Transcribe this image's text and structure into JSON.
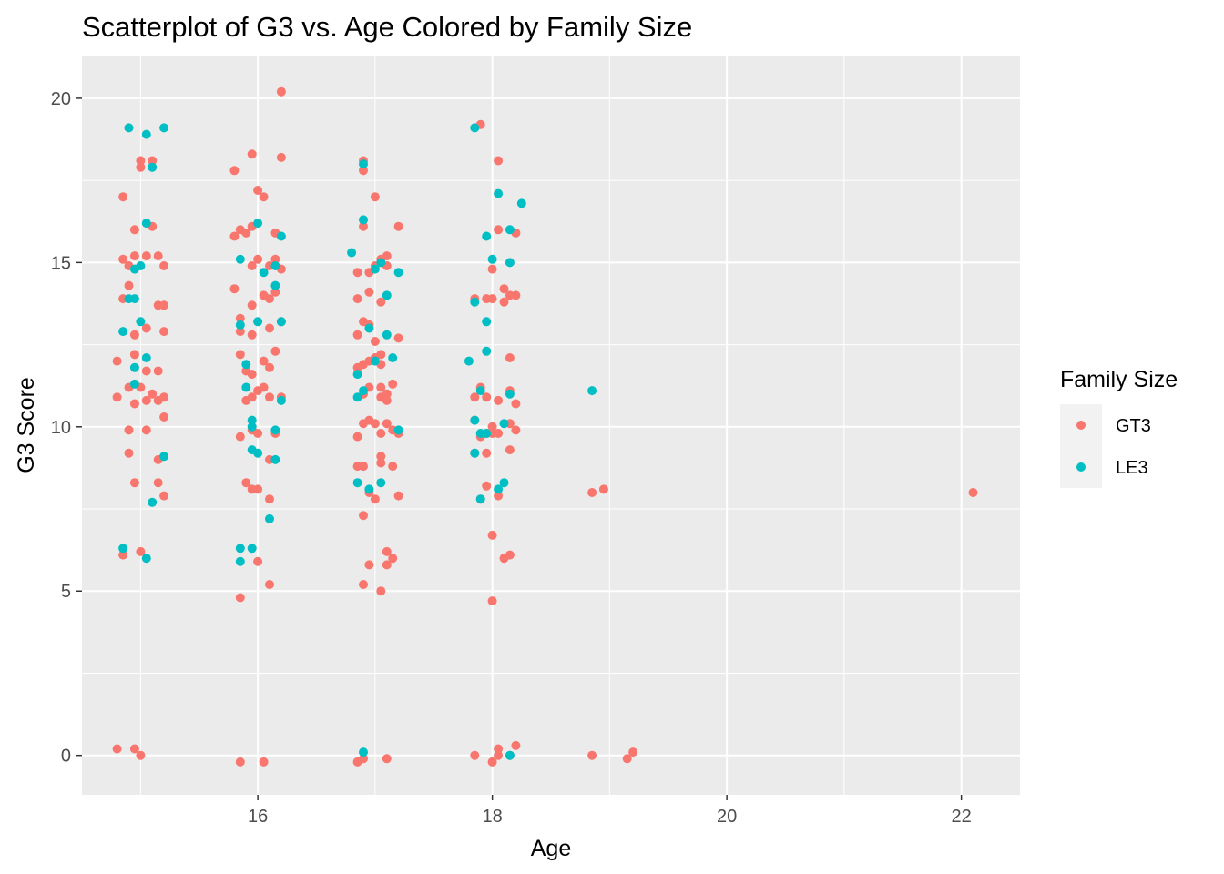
{
  "chart_data": {
    "type": "scatter",
    "title": "Scatterplot of G3 vs. Age Colored by Family Size",
    "xlabel": "Age",
    "ylabel": "G3 Score",
    "xlim": [
      14.5,
      22.5
    ],
    "ylim": [
      -1.2,
      21.3
    ],
    "x_ticks": [
      "16",
      "18",
      "20",
      "22"
    ],
    "y_ticks": [
      "0",
      "5",
      "10",
      "15",
      "20"
    ],
    "x_tick_values": [
      16,
      18,
      20,
      22
    ],
    "y_tick_values": [
      0,
      5,
      10,
      15,
      20
    ],
    "grid": true,
    "legend": {
      "title": "Family Size",
      "position": "right"
    },
    "series": [
      {
        "name": "GT3",
        "color": "#F8766D",
        "points": [
          [
            14.8,
            0.2
          ],
          [
            14.95,
            0.2
          ],
          [
            15.0,
            0.0
          ],
          [
            14.85,
            6.1
          ],
          [
            15.0,
            6.2
          ],
          [
            14.95,
            8.3
          ],
          [
            15.15,
            8.3
          ],
          [
            15.2,
            7.9
          ],
          [
            14.9,
            9.2
          ],
          [
            14.9,
            9.9
          ],
          [
            15.05,
            9.9
          ],
          [
            15.15,
            9.0
          ],
          [
            15.2,
            10.3
          ],
          [
            14.8,
            10.9
          ],
          [
            14.95,
            10.7
          ],
          [
            15.05,
            10.8
          ],
          [
            15.15,
            10.8
          ],
          [
            15.2,
            10.9
          ],
          [
            14.9,
            11.2
          ],
          [
            15.0,
            11.2
          ],
          [
            15.1,
            11.0
          ],
          [
            15.15,
            11.7
          ],
          [
            15.05,
            11.7
          ],
          [
            14.8,
            12.0
          ],
          [
            14.95,
            12.2
          ],
          [
            14.95,
            12.8
          ],
          [
            15.05,
            13.0
          ],
          [
            15.2,
            12.9
          ],
          [
            14.85,
            13.9
          ],
          [
            14.9,
            14.3
          ],
          [
            15.15,
            13.7
          ],
          [
            15.2,
            13.7
          ],
          [
            14.85,
            15.1
          ],
          [
            14.9,
            14.9
          ],
          [
            14.95,
            15.2
          ],
          [
            15.05,
            15.2
          ],
          [
            15.15,
            15.2
          ],
          [
            15.2,
            14.9
          ],
          [
            14.95,
            16.0
          ],
          [
            15.1,
            16.1
          ],
          [
            14.85,
            17.0
          ],
          [
            15.0,
            17.9
          ],
          [
            15.0,
            18.1
          ],
          [
            15.1,
            18.1
          ],
          [
            15.85,
            -0.2
          ],
          [
            16.05,
            -0.2
          ],
          [
            15.85,
            4.8
          ],
          [
            16.1,
            5.2
          ],
          [
            16.0,
            5.9
          ],
          [
            16.0,
            8.1
          ],
          [
            16.1,
            7.8
          ],
          [
            15.9,
            8.3
          ],
          [
            15.95,
            8.1
          ],
          [
            15.85,
            9.7
          ],
          [
            15.95,
            9.9
          ],
          [
            16.0,
            9.8
          ],
          [
            16.1,
            9.0
          ],
          [
            16.15,
            9.8
          ],
          [
            15.9,
            10.8
          ],
          [
            15.95,
            10.9
          ],
          [
            16.0,
            11.1
          ],
          [
            16.05,
            11.2
          ],
          [
            16.1,
            10.9
          ],
          [
            16.2,
            10.9
          ],
          [
            15.9,
            11.7
          ],
          [
            15.95,
            11.6
          ],
          [
            16.05,
            12.0
          ],
          [
            16.1,
            11.8
          ],
          [
            16.15,
            12.3
          ],
          [
            15.85,
            12.2
          ],
          [
            15.85,
            12.9
          ],
          [
            15.95,
            12.8
          ],
          [
            16.1,
            13.0
          ],
          [
            15.8,
            14.2
          ],
          [
            15.85,
            13.3
          ],
          [
            15.95,
            13.7
          ],
          [
            16.05,
            14.0
          ],
          [
            16.1,
            13.9
          ],
          [
            16.15,
            14.1
          ],
          [
            16.2,
            13.2
          ],
          [
            15.8,
            15.8
          ],
          [
            15.9,
            15.9
          ],
          [
            15.95,
            14.9
          ],
          [
            16.0,
            15.1
          ],
          [
            16.1,
            14.9
          ],
          [
            16.15,
            15.1
          ],
          [
            16.2,
            14.8
          ],
          [
            15.85,
            16.0
          ],
          [
            15.95,
            16.1
          ],
          [
            16.0,
            17.2
          ],
          [
            16.05,
            17.0
          ],
          [
            16.15,
            15.9
          ],
          [
            15.8,
            17.8
          ],
          [
            15.95,
            18.3
          ],
          [
            16.2,
            18.2
          ],
          [
            16.2,
            20.2
          ],
          [
            16.85,
            -0.2
          ],
          [
            16.9,
            -0.1
          ],
          [
            17.1,
            -0.1
          ],
          [
            16.9,
            5.2
          ],
          [
            17.05,
            5.0
          ],
          [
            16.95,
            5.8
          ],
          [
            17.1,
            6.2
          ],
          [
            17.15,
            6.0
          ],
          [
            17.1,
            5.8
          ],
          [
            16.9,
            7.3
          ],
          [
            16.95,
            8.0
          ],
          [
            17.0,
            7.8
          ],
          [
            17.2,
            7.9
          ],
          [
            16.85,
            8.8
          ],
          [
            16.9,
            8.8
          ],
          [
            17.05,
            9.1
          ],
          [
            17.05,
            8.9
          ],
          [
            17.15,
            8.8
          ],
          [
            16.85,
            9.7
          ],
          [
            16.9,
            10.1
          ],
          [
            16.95,
            10.2
          ],
          [
            17.0,
            10.1
          ],
          [
            17.05,
            9.8
          ],
          [
            17.1,
            10.1
          ],
          [
            17.15,
            9.9
          ],
          [
            17.2,
            9.8
          ],
          [
            16.9,
            11.0
          ],
          [
            16.95,
            11.2
          ],
          [
            17.05,
            11.2
          ],
          [
            17.05,
            10.9
          ],
          [
            17.1,
            11.0
          ],
          [
            17.15,
            11.3
          ],
          [
            17.1,
            10.8
          ],
          [
            16.85,
            11.8
          ],
          [
            16.9,
            11.9
          ],
          [
            16.95,
            12.0
          ],
          [
            17.0,
            12.1
          ],
          [
            17.05,
            11.9
          ],
          [
            17.05,
            12.2
          ],
          [
            16.85,
            12.8
          ],
          [
            16.9,
            13.2
          ],
          [
            16.95,
            13.1
          ],
          [
            17.0,
            12.6
          ],
          [
            17.2,
            12.7
          ],
          [
            16.85,
            13.9
          ],
          [
            16.95,
            14.1
          ],
          [
            17.05,
            13.8
          ],
          [
            17.1,
            14.9
          ],
          [
            17.1,
            15.2
          ],
          [
            17.05,
            15.1
          ],
          [
            16.85,
            14.7
          ],
          [
            16.95,
            14.7
          ],
          [
            17.0,
            14.9
          ],
          [
            17.0,
            17.0
          ],
          [
            17.2,
            16.1
          ],
          [
            16.9,
            16.1
          ],
          [
            16.9,
            17.8
          ],
          [
            16.9,
            18.1
          ],
          [
            17.85,
            0.0
          ],
          [
            18.0,
            -0.2
          ],
          [
            18.05,
            0.0
          ],
          [
            18.05,
            0.2
          ],
          [
            18.15,
            0.0
          ],
          [
            18.2,
            0.3
          ],
          [
            18.0,
            4.7
          ],
          [
            18.0,
            6.7
          ],
          [
            18.1,
            6.0
          ],
          [
            18.15,
            6.1
          ],
          [
            17.9,
            7.8
          ],
          [
            17.95,
            8.2
          ],
          [
            18.05,
            7.9
          ],
          [
            17.85,
            9.2
          ],
          [
            17.9,
            9.7
          ],
          [
            17.95,
            9.2
          ],
          [
            18.0,
            9.8
          ],
          [
            18.05,
            9.8
          ],
          [
            18.15,
            9.3
          ],
          [
            18.2,
            9.9
          ],
          [
            17.85,
            10.9
          ],
          [
            17.9,
            11.2
          ],
          [
            17.95,
            10.9
          ],
          [
            18.05,
            10.8
          ],
          [
            18.15,
            11.1
          ],
          [
            18.2,
            10.7
          ],
          [
            18.15,
            10.1
          ],
          [
            17.85,
            10.2
          ],
          [
            17.95,
            9.8
          ],
          [
            18.0,
            10.0
          ],
          [
            18.15,
            12.1
          ],
          [
            18.1,
            13.8
          ],
          [
            18.0,
            13.9
          ],
          [
            17.85,
            13.9
          ],
          [
            17.95,
            13.9
          ],
          [
            18.1,
            14.2
          ],
          [
            18.2,
            14.0
          ],
          [
            18.15,
            14.0
          ],
          [
            18.0,
            14.8
          ],
          [
            18.2,
            15.9
          ],
          [
            18.05,
            16.0
          ],
          [
            18.05,
            18.1
          ],
          [
            17.9,
            19.2
          ],
          [
            18.85,
            8.0
          ],
          [
            18.95,
            8.1
          ],
          [
            18.85,
            0.0
          ],
          [
            19.15,
            -0.1
          ],
          [
            19.2,
            0.1
          ],
          [
            22.1,
            8.0
          ]
        ]
      },
      {
        "name": "LE3",
        "color": "#00BFC4",
        "points": [
          [
            14.85,
            6.3
          ],
          [
            15.05,
            6.0
          ],
          [
            15.1,
            7.7
          ],
          [
            15.2,
            9.1
          ],
          [
            14.95,
            11.8
          ],
          [
            15.05,
            12.1
          ],
          [
            14.95,
            11.3
          ],
          [
            14.85,
            12.9
          ],
          [
            15.0,
            13.2
          ],
          [
            14.95,
            13.9
          ],
          [
            14.9,
            13.9
          ],
          [
            14.95,
            14.8
          ],
          [
            15.0,
            14.9
          ],
          [
            15.05,
            16.2
          ],
          [
            14.9,
            19.1
          ],
          [
            15.05,
            18.9
          ],
          [
            15.1,
            17.9
          ],
          [
            15.2,
            19.1
          ],
          [
            15.85,
            6.3
          ],
          [
            15.95,
            6.3
          ],
          [
            15.85,
            5.9
          ],
          [
            16.1,
            7.2
          ],
          [
            15.95,
            9.3
          ],
          [
            16.0,
            9.2
          ],
          [
            16.15,
            9.0
          ],
          [
            15.95,
            10.0
          ],
          [
            15.95,
            10.2
          ],
          [
            16.15,
            9.9
          ],
          [
            15.9,
            11.2
          ],
          [
            15.9,
            11.9
          ],
          [
            16.2,
            10.8
          ],
          [
            15.85,
            13.1
          ],
          [
            16.0,
            13.2
          ],
          [
            16.2,
            13.2
          ],
          [
            15.85,
            15.1
          ],
          [
            16.05,
            14.7
          ],
          [
            16.15,
            14.9
          ],
          [
            16.15,
            14.3
          ],
          [
            16.0,
            16.2
          ],
          [
            16.2,
            15.8
          ],
          [
            16.9,
            0.1
          ],
          [
            16.85,
            8.3
          ],
          [
            16.95,
            8.1
          ],
          [
            17.05,
            8.3
          ],
          [
            16.85,
            10.9
          ],
          [
            16.9,
            11.1
          ],
          [
            17.0,
            12.0
          ],
          [
            17.15,
            12.1
          ],
          [
            17.2,
            9.9
          ],
          [
            16.85,
            11.6
          ],
          [
            16.95,
            13.0
          ],
          [
            17.1,
            12.8
          ],
          [
            16.8,
            15.3
          ],
          [
            17.0,
            14.8
          ],
          [
            17.05,
            15.0
          ],
          [
            17.1,
            14.0
          ],
          [
            17.2,
            14.7
          ],
          [
            16.9,
            16.3
          ],
          [
            16.9,
            18.0
          ],
          [
            18.15,
            0.0
          ],
          [
            17.9,
            7.8
          ],
          [
            18.05,
            8.1
          ],
          [
            18.1,
            8.3
          ],
          [
            17.85,
            9.2
          ],
          [
            17.85,
            10.2
          ],
          [
            17.9,
            9.8
          ],
          [
            17.95,
            9.8
          ],
          [
            18.1,
            10.1
          ],
          [
            17.8,
            12.0
          ],
          [
            17.9,
            11.1
          ],
          [
            17.95,
            12.3
          ],
          [
            18.15,
            11.0
          ],
          [
            17.95,
            13.2
          ],
          [
            17.85,
            13.8
          ],
          [
            18.0,
            15.1
          ],
          [
            18.15,
            15.0
          ],
          [
            17.95,
            15.8
          ],
          [
            18.05,
            17.1
          ],
          [
            18.15,
            16.0
          ],
          [
            18.25,
            16.8
          ],
          [
            17.85,
            19.1
          ],
          [
            18.85,
            11.1
          ]
        ]
      }
    ]
  }
}
